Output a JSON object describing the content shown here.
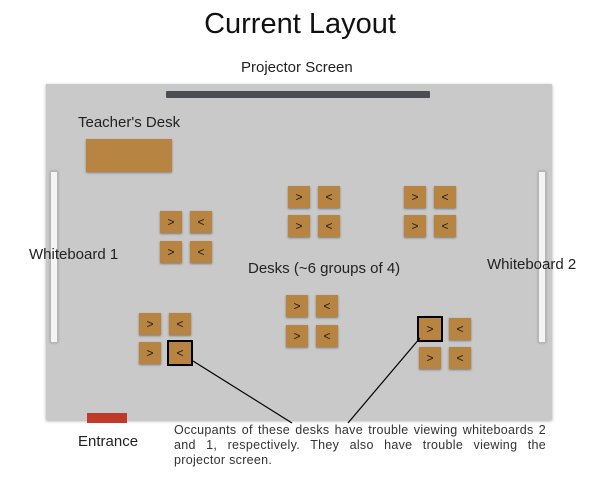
{
  "title": "Current Layout",
  "labels": {
    "projector": "Projector Screen",
    "teachers_desk": "Teacher's Desk",
    "whiteboard1": "Whiteboard 1",
    "whiteboard2": "Whiteboard 2",
    "desks": "Desks (~6 groups of 4)",
    "entrance": "Entrance"
  },
  "callout": "Occupants of these desks have trouble viewing whiteboards 2 and 1, respectively. They also have trouble viewing the projector screen.",
  "colors": {
    "room": "#c9c9c9",
    "desk": "#b78442",
    "projector": "#4a4e53",
    "entrance": "#c0392b"
  },
  "desk_groups": [
    {
      "id": "g1",
      "arrows": [
        ">",
        "<",
        ">",
        "<"
      ]
    },
    {
      "id": "g2",
      "arrows": [
        ">",
        "<",
        ">",
        "<"
      ]
    },
    {
      "id": "g3",
      "arrows": [
        ">",
        "<",
        ">",
        "<"
      ]
    },
    {
      "id": "g4",
      "arrows": [
        ">",
        "<",
        ">",
        "<"
      ]
    },
    {
      "id": "g5",
      "arrows": [
        ">",
        "<",
        ">",
        "<"
      ]
    },
    {
      "id": "g6",
      "arrows": [
        ">",
        "<",
        ">",
        "<"
      ]
    }
  ]
}
